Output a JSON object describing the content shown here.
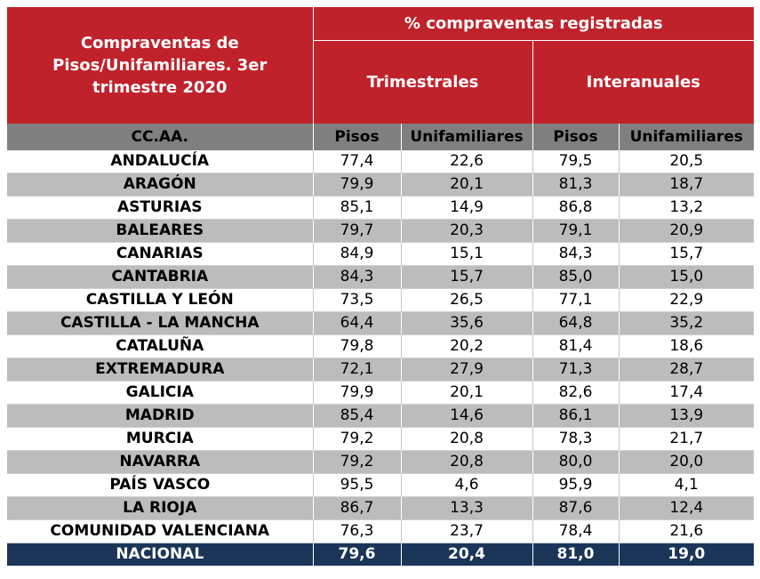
{
  "header": {
    "title": "Compraventas de Pisos/Unifamiliares. 3er trimestre 2020",
    "group": "% compraventas registradas",
    "subgroups": [
      "Trimestrales",
      "Interanuales"
    ],
    "col_region": "CC.AA.",
    "col_pisos": "Pisos",
    "col_unif": "Unifamiliares"
  },
  "rows": [
    {
      "region": "ANDALUCÍA",
      "tp": "77,4",
      "tu": "22,6",
      "ip": "79,5",
      "iu": "20,5"
    },
    {
      "region": "ARAGÓN",
      "tp": "79,9",
      "tu": "20,1",
      "ip": "81,3",
      "iu": "18,7"
    },
    {
      "region": "ASTURIAS",
      "tp": "85,1",
      "tu": "14,9",
      "ip": "86,8",
      "iu": "13,2"
    },
    {
      "region": "BALEARES",
      "tp": "79,7",
      "tu": "20,3",
      "ip": "79,1",
      "iu": "20,9"
    },
    {
      "region": "CANARIAS",
      "tp": "84,9",
      "tu": "15,1",
      "ip": "84,3",
      "iu": "15,7"
    },
    {
      "region": "CANTABRIA",
      "tp": "84,3",
      "tu": "15,7",
      "ip": "85,0",
      "iu": "15,0"
    },
    {
      "region": "CASTILLA Y LEÓN",
      "tp": "73,5",
      "tu": "26,5",
      "ip": "77,1",
      "iu": "22,9"
    },
    {
      "region": "CASTILLA - LA MANCHA",
      "tp": "64,4",
      "tu": "35,6",
      "ip": "64,8",
      "iu": "35,2"
    },
    {
      "region": "CATALUÑA",
      "tp": "79,8",
      "tu": "20,2",
      "ip": "81,4",
      "iu": "18,6"
    },
    {
      "region": "EXTREMADURA",
      "tp": "72,1",
      "tu": "27,9",
      "ip": "71,3",
      "iu": "28,7"
    },
    {
      "region": "GALICIA",
      "tp": "79,9",
      "tu": "20,1",
      "ip": "82,6",
      "iu": "17,4"
    },
    {
      "region": "MADRID",
      "tp": "85,4",
      "tu": "14,6",
      "ip": "86,1",
      "iu": "13,9"
    },
    {
      "region": "MURCIA",
      "tp": "79,2",
      "tu": "20,8",
      "ip": "78,3",
      "iu": "21,7"
    },
    {
      "region": "NAVARRA",
      "tp": "79,2",
      "tu": "20,8",
      "ip": "80,0",
      "iu": "20,0"
    },
    {
      "region": "PAÍS VASCO",
      "tp": "95,5",
      "tu": "4,6",
      "ip": "95,9",
      "iu": "4,1"
    },
    {
      "region": "LA RIOJA",
      "tp": "86,7",
      "tu": "13,3",
      "ip": "87,6",
      "iu": "12,4"
    },
    {
      "region": "COMUNIDAD VALENCIANA",
      "tp": "76,3",
      "tu": "23,7",
      "ip": "78,4",
      "iu": "21,6"
    }
  ],
  "total": {
    "region": "NACIONAL",
    "tp": "79,6",
    "tu": "20,4",
    "ip": "81,0",
    "iu": "19,0"
  },
  "colors": {
    "header_red": "#c0222b",
    "subheader_grey": "#7f7f7f",
    "stripe_grey": "#bcbcbc",
    "total_navy": "#1b3559"
  },
  "chart_data": {
    "type": "table",
    "title": "Compraventas de Pisos/Unifamiliares. 3er trimestre 2020",
    "columns": [
      "CC.AA.",
      "Trimestrales Pisos",
      "Trimestrales Unifamiliares",
      "Interanuales Pisos",
      "Interanuales Unifamiliares"
    ],
    "rows": [
      [
        "ANDALUCÍA",
        77.4,
        22.6,
        79.5,
        20.5
      ],
      [
        "ARAGÓN",
        79.9,
        20.1,
        81.3,
        18.7
      ],
      [
        "ASTURIAS",
        85.1,
        14.9,
        86.8,
        13.2
      ],
      [
        "BALEARES",
        79.7,
        20.3,
        79.1,
        20.9
      ],
      [
        "CANARIAS",
        84.9,
        15.1,
        84.3,
        15.7
      ],
      [
        "CANTABRIA",
        84.3,
        15.7,
        85.0,
        15.0
      ],
      [
        "CASTILLA Y LEÓN",
        73.5,
        26.5,
        77.1,
        22.9
      ],
      [
        "CASTILLA - LA MANCHA",
        64.4,
        35.6,
        64.8,
        35.2
      ],
      [
        "CATALUÑA",
        79.8,
        20.2,
        81.4,
        18.6
      ],
      [
        "EXTREMADURA",
        72.1,
        27.9,
        71.3,
        28.7
      ],
      [
        "GALICIA",
        79.9,
        20.1,
        82.6,
        17.4
      ],
      [
        "MADRID",
        85.4,
        14.6,
        86.1,
        13.9
      ],
      [
        "MURCIA",
        79.2,
        20.8,
        78.3,
        21.7
      ],
      [
        "NAVARRA",
        79.2,
        20.8,
        80.0,
        20.0
      ],
      [
        "PAÍS VASCO",
        95.5,
        4.6,
        95.9,
        4.1
      ],
      [
        "LA RIOJA",
        86.7,
        13.3,
        87.6,
        12.4
      ],
      [
        "COMUNIDAD VALENCIANA",
        76.3,
        23.7,
        78.4,
        21.6
      ],
      [
        "NACIONAL",
        79.6,
        20.4,
        81.0,
        19.0
      ]
    ]
  }
}
